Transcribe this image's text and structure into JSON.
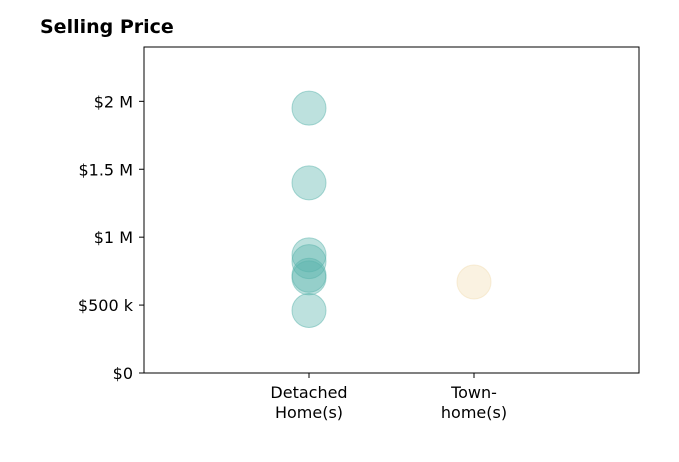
{
  "chart_data": {
    "type": "scatter",
    "title": "Selling Price",
    "xlabel": "",
    "ylabel": "",
    "categories": [
      {
        "lines": [
          "Detached",
          "Home(s)"
        ]
      },
      {
        "lines": [
          "Town-",
          "home(s)"
        ]
      }
    ],
    "xlim": [
      -1,
      2
    ],
    "ylim": [
      0,
      2400000
    ],
    "yticks": [
      {
        "value": 0,
        "label": "$0"
      },
      {
        "value": 500000,
        "label": "$500 k"
      },
      {
        "value": 1000000,
        "label": "$1 M"
      },
      {
        "value": 1500000,
        "label": "$1.5 M"
      },
      {
        "value": 2000000,
        "label": "$2 M"
      }
    ],
    "grid": false,
    "series": [
      {
        "category_index": 0,
        "color": "#5ab4ac",
        "values": [
          1950000,
          1400000,
          870000,
          820000,
          720000,
          700000,
          460000
        ]
      },
      {
        "category_index": 1,
        "color": "#f2deb3",
        "values": [
          670000
        ]
      }
    ]
  }
}
